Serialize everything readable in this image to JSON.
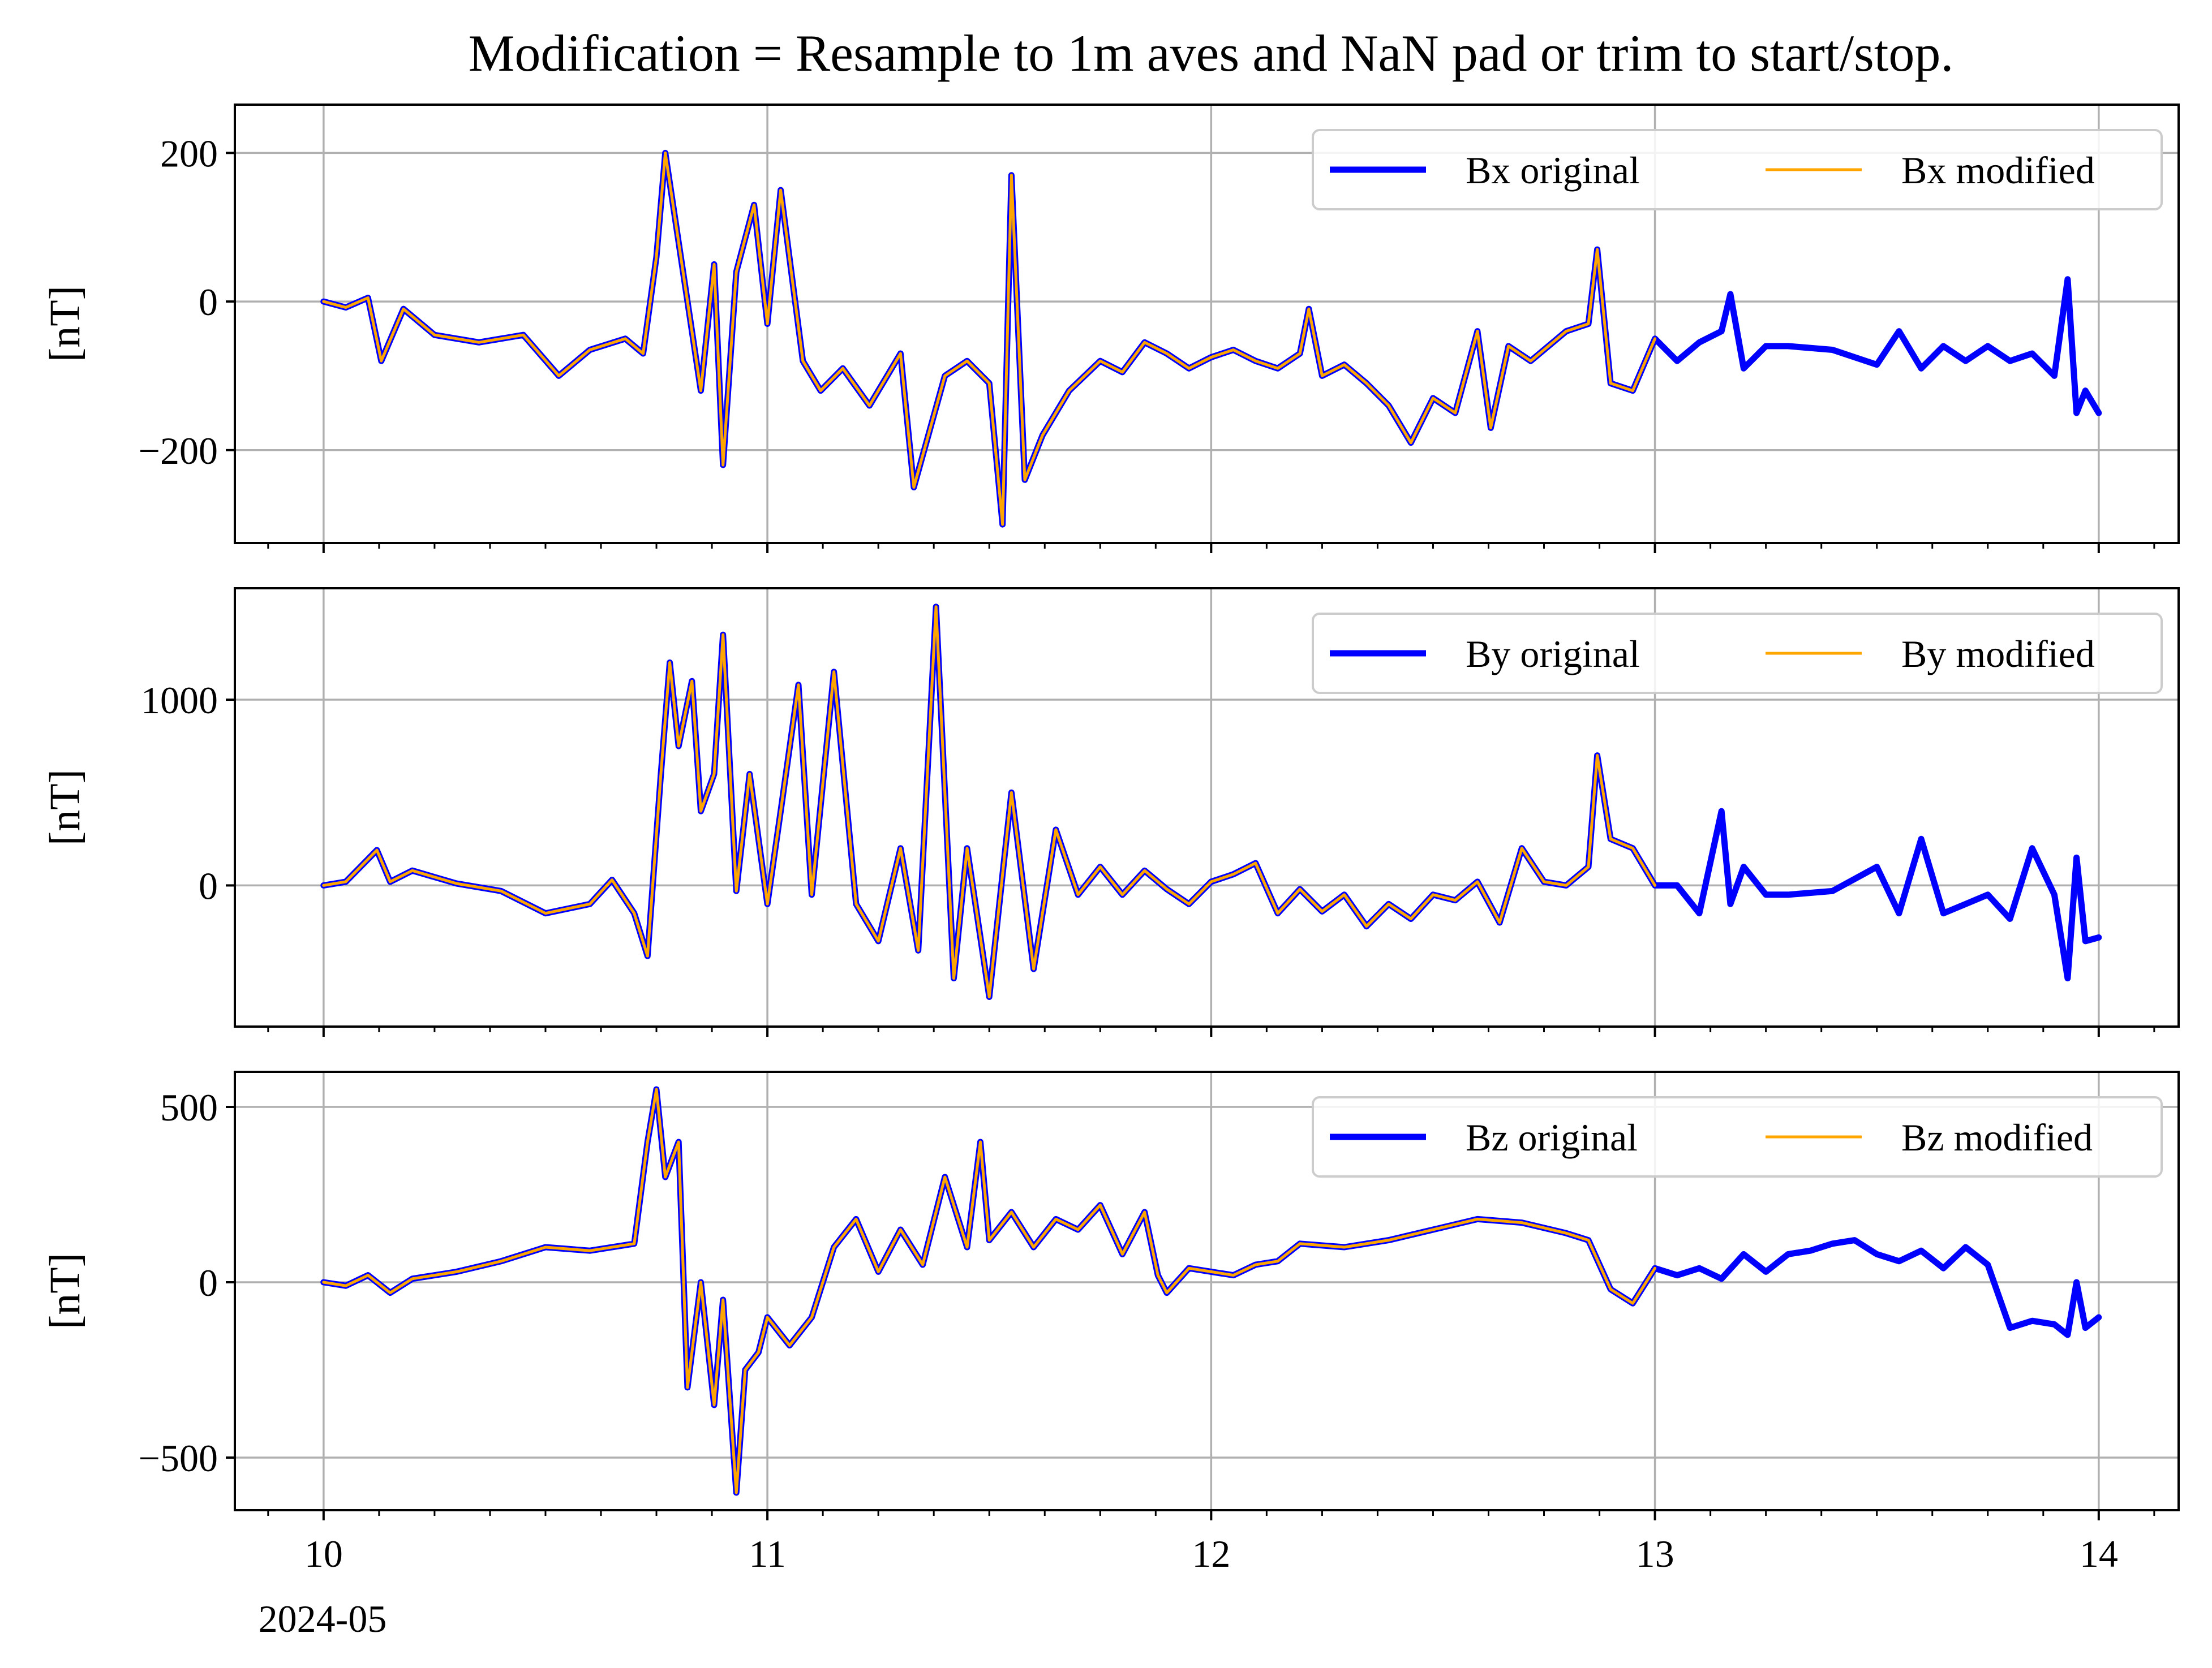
{
  "figure": {
    "title": "Modification = Resample to 1m aves and NaN pad or trim to start/stop.",
    "x_origin_label": "2024-05"
  },
  "colors": {
    "original": "#0000ff",
    "modified": "#ffa500",
    "grid": "#b0b0b0",
    "axes": "#000000"
  },
  "chart_data": [
    {
      "type": "line",
      "id": "bx",
      "ylabel": "[nT]",
      "xlim": [
        9.8,
        14.18
      ],
      "ylim": [
        -325,
        265
      ],
      "yticks": [
        200,
        0,
        -200
      ],
      "ytick_labels": [
        "200",
        "0",
        "−200"
      ],
      "xticks": [
        10,
        11,
        12,
        13,
        14
      ],
      "xtick_labels": [
        "10",
        "11",
        "12",
        "13",
        "14"
      ],
      "grid": true,
      "legend": {
        "position": "top-right",
        "ncol": 2,
        "entries": [
          "Bx original",
          "Bx modified"
        ]
      },
      "series": [
        {
          "name": "Bx original",
          "role": "original",
          "x": [
            10.0,
            10.05,
            10.1,
            10.13,
            10.18,
            10.25,
            10.35,
            10.45,
            10.53,
            10.6,
            10.68,
            10.72,
            10.75,
            10.77,
            10.8,
            10.85,
            10.88,
            10.9,
            10.93,
            10.97,
            11.0,
            11.03,
            11.08,
            11.12,
            11.17,
            11.23,
            11.3,
            11.33,
            11.4,
            11.45,
            11.5,
            11.53,
            11.55,
            11.58,
            11.62,
            11.68,
            11.75,
            11.8,
            11.85,
            11.9,
            11.95,
            12.0,
            12.05,
            12.1,
            12.15,
            12.2,
            12.22,
            12.25,
            12.3,
            12.35,
            12.4,
            12.45,
            12.5,
            12.55,
            12.6,
            12.63,
            12.67,
            12.72,
            12.8,
            12.85,
            12.87,
            12.9,
            12.95,
            13.0,
            13.05,
            13.1,
            13.15,
            13.17,
            13.2,
            13.25,
            13.3,
            13.4,
            13.5,
            13.55,
            13.6,
            13.65,
            13.7,
            13.75,
            13.8,
            13.85,
            13.9,
            13.93,
            13.95,
            13.97,
            14.0
          ],
          "values": [
            0,
            -8,
            5,
            -80,
            -10,
            -45,
            -55,
            -45,
            -100,
            -65,
            -50,
            -70,
            60,
            200,
            80,
            -120,
            50,
            -220,
            40,
            130,
            -30,
            150,
            -80,
            -120,
            -90,
            -140,
            -70,
            -250,
            -100,
            -80,
            -110,
            -300,
            170,
            -240,
            -180,
            -120,
            -80,
            -95,
            -55,
            -70,
            -90,
            -75,
            -65,
            -80,
            -90,
            -70,
            -10,
            -100,
            -85,
            -110,
            -140,
            -190,
            -130,
            -150,
            -40,
            -170,
            -60,
            -80,
            -40,
            -30,
            70,
            -110,
            -120,
            -50,
            -80,
            -55,
            -40,
            10,
            -90,
            -60,
            -60,
            -65,
            -85,
            -40,
            -90,
            -60,
            -80,
            -60,
            -80,
            -70,
            -100,
            30,
            -150,
            -120,
            -150
          ]
        },
        {
          "name": "Bx modified",
          "role": "modified",
          "x": [
            10.0,
            10.05,
            10.1,
            10.13,
            10.18,
            10.25,
            10.35,
            10.45,
            10.53,
            10.6,
            10.68,
            10.72,
            10.75,
            10.77,
            10.8,
            10.85,
            10.88,
            10.9,
            10.93,
            10.97,
            11.0,
            11.03,
            11.08,
            11.12,
            11.17,
            11.23,
            11.3,
            11.33,
            11.4,
            11.45,
            11.5,
            11.53,
            11.55,
            11.58,
            11.62,
            11.68,
            11.75,
            11.8,
            11.85,
            11.9,
            11.95,
            12.0,
            12.05,
            12.1,
            12.15,
            12.2,
            12.22,
            12.25,
            12.3,
            12.35,
            12.4,
            12.45,
            12.5,
            12.55,
            12.6,
            12.63,
            12.67,
            12.72,
            12.8,
            12.85,
            12.87,
            12.9,
            12.95,
            13.0
          ],
          "values": [
            0,
            -8,
            5,
            -80,
            -10,
            -45,
            -55,
            -45,
            -100,
            -65,
            -50,
            -70,
            60,
            200,
            80,
            -120,
            50,
            -220,
            40,
            130,
            -30,
            150,
            -80,
            -120,
            -90,
            -140,
            -70,
            -250,
            -100,
            -80,
            -110,
            -300,
            170,
            -240,
            -180,
            -120,
            -80,
            -95,
            -55,
            -70,
            -90,
            -75,
            -65,
            -80,
            -90,
            -70,
            -10,
            -100,
            -85,
            -110,
            -140,
            -190,
            -130,
            -150,
            -40,
            -170,
            -60,
            -80,
            -40,
            -30,
            70,
            -110,
            -120,
            -50
          ]
        }
      ]
    },
    {
      "type": "line",
      "id": "by",
      "ylabel": "[nT]",
      "xlim": [
        9.8,
        14.18
      ],
      "ylim": [
        -760,
        1600
      ],
      "yticks": [
        1000,
        0
      ],
      "ytick_labels": [
        "1000",
        "0"
      ],
      "xticks": [
        10,
        11,
        12,
        13,
        14
      ],
      "xtick_labels": [
        "10",
        "11",
        "12",
        "13",
        "14"
      ],
      "grid": true,
      "legend": {
        "position": "top-right",
        "ncol": 2,
        "entries": [
          "By original",
          "By modified"
        ]
      },
      "series": [
        {
          "name": "By original",
          "role": "original",
          "x": [
            10.0,
            10.05,
            10.12,
            10.15,
            10.2,
            10.3,
            10.4,
            10.5,
            10.6,
            10.65,
            10.7,
            10.73,
            10.76,
            10.78,
            10.8,
            10.83,
            10.85,
            10.88,
            10.9,
            10.93,
            10.96,
            11.0,
            11.03,
            11.07,
            11.1,
            11.15,
            11.2,
            11.25,
            11.3,
            11.34,
            11.38,
            11.42,
            11.45,
            11.5,
            11.55,
            11.6,
            11.65,
            11.7,
            11.75,
            11.8,
            11.85,
            11.9,
            11.95,
            12.0,
            12.05,
            12.1,
            12.15,
            12.2,
            12.25,
            12.3,
            12.35,
            12.4,
            12.45,
            12.5,
            12.55,
            12.6,
            12.65,
            12.7,
            12.75,
            12.8,
            12.85,
            12.87,
            12.9,
            12.95,
            13.0,
            13.05,
            13.1,
            13.15,
            13.17,
            13.2,
            13.25,
            13.3,
            13.4,
            13.5,
            13.55,
            13.6,
            13.65,
            13.7,
            13.75,
            13.8,
            13.85,
            13.9,
            13.93,
            13.95,
            13.97,
            14.0
          ],
          "values": [
            0,
            20,
            190,
            20,
            80,
            10,
            -30,
            -150,
            -100,
            30,
            -150,
            -380,
            600,
            1200,
            750,
            1100,
            400,
            600,
            1350,
            -30,
            600,
            -100,
            400,
            1080,
            -50,
            1150,
            -100,
            -300,
            200,
            -350,
            1500,
            -500,
            200,
            -600,
            500,
            -450,
            300,
            -50,
            100,
            -50,
            80,
            -20,
            -100,
            20,
            60,
            120,
            -150,
            -20,
            -140,
            -50,
            -220,
            -100,
            -180,
            -50,
            -80,
            20,
            -200,
            200,
            20,
            0,
            100,
            700,
            250,
            200,
            0,
            0,
            -150,
            400,
            -100,
            100,
            -50,
            -50,
            -30,
            100,
            -150,
            250,
            -150,
            -100,
            -50,
            -180,
            200,
            -50,
            -500,
            150,
            -300,
            -280
          ]
        },
        {
          "name": "By modified",
          "role": "modified",
          "x": [
            10.0,
            10.05,
            10.12,
            10.15,
            10.2,
            10.3,
            10.4,
            10.5,
            10.6,
            10.65,
            10.7,
            10.73,
            10.76,
            10.78,
            10.8,
            10.83,
            10.85,
            10.88,
            10.9,
            10.93,
            10.96,
            11.0,
            11.03,
            11.07,
            11.1,
            11.15,
            11.2,
            11.25,
            11.3,
            11.34,
            11.38,
            11.42,
            11.45,
            11.5,
            11.55,
            11.6,
            11.65,
            11.7,
            11.75,
            11.8,
            11.85,
            11.9,
            11.95,
            12.0,
            12.05,
            12.1,
            12.15,
            12.2,
            12.25,
            12.3,
            12.35,
            12.4,
            12.45,
            12.5,
            12.55,
            12.6,
            12.65,
            12.7,
            12.75,
            12.8,
            12.85,
            12.87,
            12.9,
            12.95,
            13.0
          ],
          "values": [
            0,
            20,
            190,
            20,
            80,
            10,
            -30,
            -150,
            -100,
            30,
            -150,
            -380,
            600,
            1200,
            750,
            1100,
            400,
            600,
            1350,
            -30,
            600,
            -100,
            400,
            1080,
            -50,
            1150,
            -100,
            -300,
            200,
            -350,
            1500,
            -500,
            200,
            -600,
            500,
            -450,
            300,
            -50,
            100,
            -50,
            80,
            -20,
            -100,
            20,
            60,
            120,
            -150,
            -20,
            -140,
            -50,
            -220,
            -100,
            -180,
            -50,
            -80,
            20,
            -200,
            200,
            20,
            0,
            100,
            700,
            250,
            200,
            0
          ]
        }
      ]
    },
    {
      "type": "line",
      "id": "bz",
      "ylabel": "[nT]",
      "xlim": [
        9.8,
        14.18
      ],
      "ylim": [
        -650,
        600
      ],
      "yticks": [
        500,
        0,
        -500
      ],
      "ytick_labels": [
        "500",
        "0",
        "−500"
      ],
      "xticks": [
        10,
        11,
        12,
        13,
        14
      ],
      "xtick_labels": [
        "10",
        "11",
        "12",
        "13",
        "14"
      ],
      "grid": true,
      "legend": {
        "position": "top-right",
        "ncol": 2,
        "entries": [
          "Bz original",
          "Bz modified"
        ]
      },
      "series": [
        {
          "name": "Bz original",
          "role": "original",
          "x": [
            10.0,
            10.05,
            10.1,
            10.15,
            10.2,
            10.3,
            10.4,
            10.5,
            10.6,
            10.7,
            10.73,
            10.75,
            10.77,
            10.8,
            10.82,
            10.85,
            10.88,
            10.9,
            10.93,
            10.95,
            10.98,
            11.0,
            11.05,
            11.1,
            11.15,
            11.2,
            11.25,
            11.3,
            11.35,
            11.4,
            11.45,
            11.48,
            11.5,
            11.55,
            11.6,
            11.65,
            11.7,
            11.75,
            11.8,
            11.85,
            11.88,
            11.9,
            11.95,
            12.0,
            12.05,
            12.1,
            12.15,
            12.2,
            12.3,
            12.4,
            12.5,
            12.6,
            12.7,
            12.8,
            12.85,
            12.9,
            12.95,
            13.0,
            13.05,
            13.1,
            13.15,
            13.2,
            13.25,
            13.3,
            13.35,
            13.4,
            13.45,
            13.5,
            13.55,
            13.6,
            13.65,
            13.7,
            13.75,
            13.8,
            13.85,
            13.9,
            13.93,
            13.95,
            13.97,
            14.0
          ],
          "values": [
            0,
            -10,
            20,
            -30,
            10,
            30,
            60,
            100,
            90,
            110,
            400,
            550,
            300,
            400,
            -300,
            0,
            -350,
            -50,
            -600,
            -250,
            -200,
            -100,
            -180,
            -100,
            100,
            180,
            30,
            150,
            50,
            300,
            100,
            400,
            120,
            200,
            100,
            180,
            150,
            220,
            80,
            200,
            20,
            -30,
            40,
            30,
            20,
            50,
            60,
            110,
            100,
            120,
            150,
            180,
            170,
            140,
            120,
            -20,
            -60,
            40,
            20,
            40,
            10,
            80,
            30,
            80,
            90,
            110,
            120,
            80,
            60,
            90,
            40,
            100,
            50,
            -130,
            -110,
            -120,
            -150,
            0,
            -130,
            -100
          ]
        },
        {
          "name": "Bz modified",
          "role": "modified",
          "x": [
            10.0,
            10.05,
            10.1,
            10.15,
            10.2,
            10.3,
            10.4,
            10.5,
            10.6,
            10.7,
            10.73,
            10.75,
            10.77,
            10.8,
            10.82,
            10.85,
            10.88,
            10.9,
            10.93,
            10.95,
            10.98,
            11.0,
            11.05,
            11.1,
            11.15,
            11.2,
            11.25,
            11.3,
            11.35,
            11.4,
            11.45,
            11.48,
            11.5,
            11.55,
            11.6,
            11.65,
            11.7,
            11.75,
            11.8,
            11.85,
            11.88,
            11.9,
            11.95,
            12.0,
            12.05,
            12.1,
            12.15,
            12.2,
            12.3,
            12.4,
            12.5,
            12.6,
            12.7,
            12.8,
            12.85,
            12.9,
            12.95,
            13.0
          ],
          "values": [
            0,
            -10,
            20,
            -30,
            10,
            30,
            60,
            100,
            90,
            110,
            400,
            550,
            300,
            400,
            -300,
            0,
            -350,
            -50,
            -600,
            -250,
            -200,
            -100,
            -180,
            -100,
            100,
            180,
            30,
            150,
            50,
            300,
            100,
            400,
            120,
            200,
            100,
            180,
            150,
            220,
            80,
            200,
            20,
            -30,
            40,
            30,
            20,
            50,
            60,
            110,
            100,
            120,
            150,
            180,
            170,
            140,
            120,
            -20,
            -60,
            40
          ]
        }
      ]
    }
  ]
}
